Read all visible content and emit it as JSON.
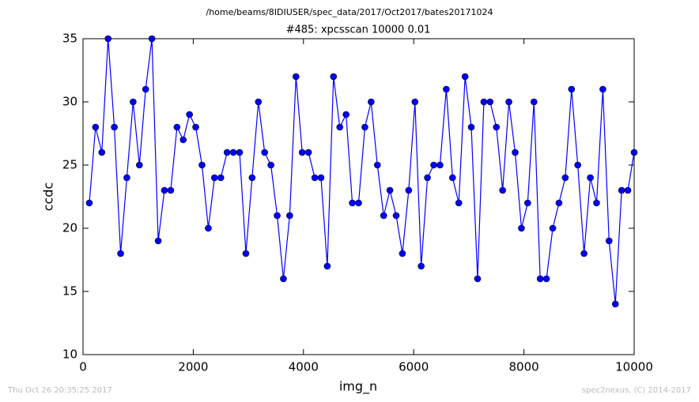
{
  "chart_data": {
    "type": "line",
    "suptitle": "/home/beams/8IDIUSER/spec_data/2017/Oct2017/bates20171024",
    "title": "#485: xpcsscan 10000 0.01",
    "x_label": "img_n",
    "y_label": "ccdc",
    "footer_left": "Thu Oct 26 20:35:25 2017",
    "footer_right": "spec2nexus, (C) 2014-2017",
    "xlim": [
      0,
      10000
    ],
    "xticks": [
      0,
      2000,
      4000,
      6000,
      8000,
      10000
    ],
    "ylim": [
      10,
      35
    ],
    "yticks": [
      10,
      15,
      20,
      25,
      30,
      35
    ],
    "grid": false,
    "series": [
      {
        "name": "ccdc",
        "color": "#0000ff",
        "x": [
          114,
          227,
          341,
          455,
          568,
          682,
          795,
          909,
          1023,
          1136,
          1250,
          1364,
          1477,
          1591,
          1705,
          1818,
          1932,
          2045,
          2159,
          2273,
          2386,
          2500,
          2614,
          2727,
          2841,
          2955,
          3068,
          3182,
          3295,
          3409,
          3523,
          3636,
          3750,
          3864,
          3977,
          4091,
          4205,
          4318,
          4432,
          4545,
          4659,
          4773,
          4886,
          5000,
          5114,
          5227,
          5341,
          5455,
          5568,
          5682,
          5795,
          5909,
          6023,
          6136,
          6250,
          6364,
          6477,
          6591,
          6705,
          6818,
          6932,
          7045,
          7159,
          7273,
          7386,
          7500,
          7614,
          7727,
          7841,
          7955,
          8068,
          8182,
          8295,
          8409,
          8523,
          8636,
          8750,
          8864,
          8977,
          9091,
          9205,
          9318,
          9432,
          9545,
          9659,
          9773,
          9886,
          10000
        ],
        "values": [
          22,
          28,
          26,
          35,
          28,
          18,
          24,
          30,
          25,
          31,
          35,
          19,
          23,
          23,
          28,
          27,
          29,
          28,
          25,
          20,
          24,
          24,
          26,
          26,
          26,
          18,
          24,
          30,
          26,
          25,
          21,
          16,
          21,
          32,
          26,
          26,
          24,
          24,
          17,
          32,
          28,
          29,
          22,
          22,
          28,
          30,
          25,
          21,
          23,
          21,
          18,
          23,
          30,
          17,
          24,
          25,
          25,
          31,
          24,
          22,
          32,
          28,
          16,
          30,
          30,
          28,
          23,
          30,
          26,
          20,
          22,
          30,
          16,
          16,
          20,
          22,
          24,
          31,
          25,
          18,
          24,
          22,
          31,
          19,
          14,
          23,
          23,
          26
        ]
      }
    ]
  }
}
